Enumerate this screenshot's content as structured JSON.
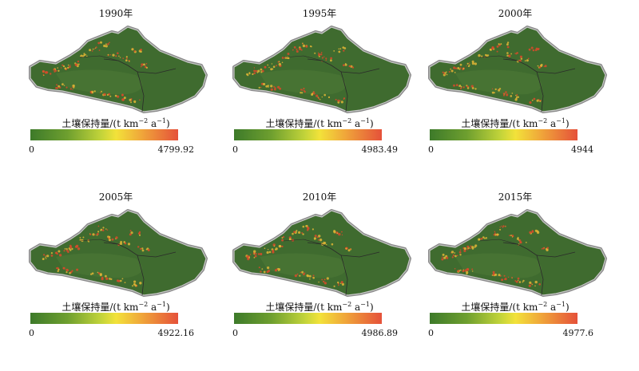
{
  "legend_title_prefix": "土壤保持量/(t km",
  "legend_title_exp1": "−2",
  "legend_title_mid": " a",
  "legend_title_exp2": "−1",
  "legend_title_suffix": ")",
  "colorbar_colors": [
    "#3d7a2a",
    "#6e9f2f",
    "#c3d43a",
    "#f2e23a",
    "#f0a73a",
    "#e5513a"
  ],
  "panels": [
    {
      "year": "1990年",
      "min": "0",
      "max": "4799.92"
    },
    {
      "year": "1995年",
      "min": "0",
      "max": "4983.49"
    },
    {
      "year": "2000年",
      "min": "0",
      "max": "4944"
    },
    {
      "year": "2005年",
      "min": "0",
      "max": "4922.16"
    },
    {
      "year": "2010年",
      "min": "0",
      "max": "4986.89"
    },
    {
      "year": "2015年",
      "min": "0",
      "max": "4977.6"
    }
  ]
}
